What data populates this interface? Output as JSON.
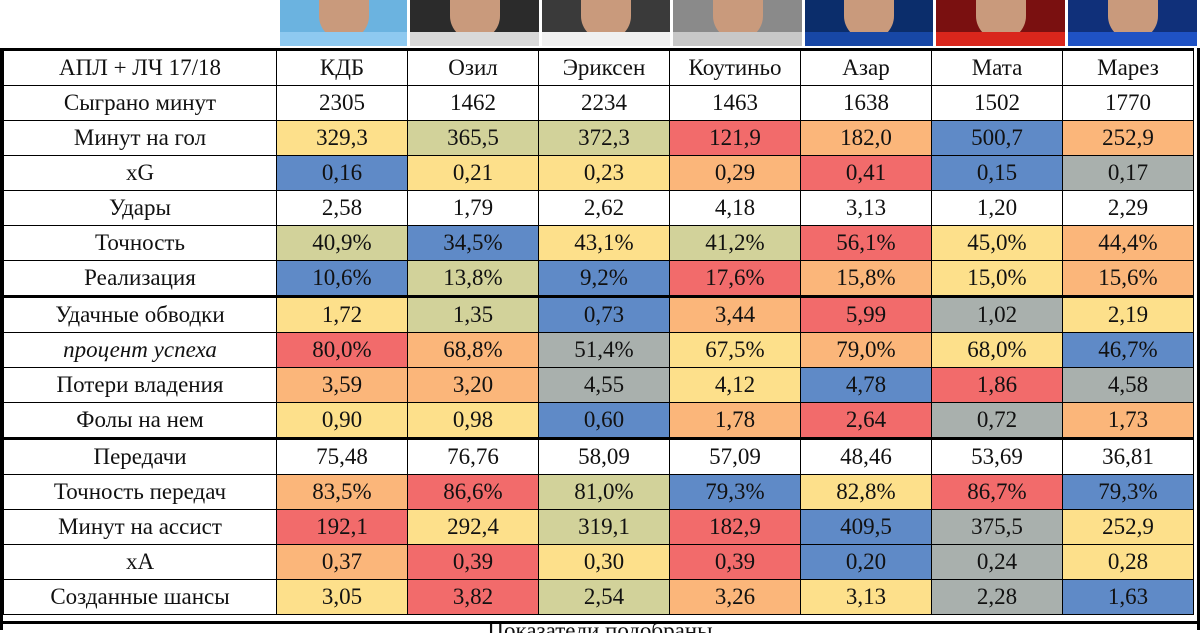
{
  "colors": {
    "yellow": "#fde08b",
    "olive": "#d2d29a",
    "red": "#f26b6b",
    "orange": "#fbb67a",
    "blue": "#5f8ac7",
    "grey": "#a9b0ad",
    "white": "#ffffff"
  },
  "header": {
    "label": "АПЛ + ЛЧ 17/18",
    "players": [
      "КДБ",
      "Озил",
      "Эриксен",
      "Коутиньо",
      "Азар",
      "Мата",
      "Марез"
    ]
  },
  "photos": [
    {
      "name": "КДБ",
      "bg": "#6bb3e0",
      "shirt": "#8ec9f0"
    },
    {
      "name": "Озил",
      "bg": "#2b2b2b",
      "shirt": "#d9d9d9"
    },
    {
      "name": "Эриксен",
      "bg": "#3a3a3a",
      "shirt": "#f0f0f0"
    },
    {
      "name": "Коутиньо",
      "bg": "#8a8a8a",
      "shirt": "#c8c8c8"
    },
    {
      "name": "Азар",
      "bg": "#0b2d6b",
      "shirt": "#1747a6"
    },
    {
      "name": "Мата",
      "bg": "#7a1010",
      "shirt": "#d9261c"
    },
    {
      "name": "Марез",
      "bg": "#10307a",
      "shirt": "#1f52c4"
    }
  ],
  "rows": [
    {
      "label": "Сыграно минут",
      "values": [
        "2305",
        "1462",
        "2234",
        "1463",
        "1638",
        "1502",
        "1770"
      ],
      "colors": [
        "white",
        "white",
        "white",
        "white",
        "white",
        "white",
        "white"
      ]
    },
    {
      "label": "Минут на гол",
      "values": [
        "329,3",
        "365,5",
        "372,3",
        "121,9",
        "182,0",
        "500,7",
        "252,9"
      ],
      "colors": [
        "yellow",
        "olive",
        "olive",
        "red",
        "orange",
        "blue",
        "orange"
      ]
    },
    {
      "label": "xG",
      "values": [
        "0,16",
        "0,21",
        "0,23",
        "0,29",
        "0,41",
        "0,15",
        "0,17"
      ],
      "colors": [
        "blue",
        "yellow",
        "yellow",
        "orange",
        "red",
        "blue",
        "grey"
      ]
    },
    {
      "label": "Удары",
      "values": [
        "2,58",
        "1,79",
        "2,62",
        "4,18",
        "3,13",
        "1,20",
        "2,29"
      ],
      "colors": [
        "white",
        "white",
        "white",
        "white",
        "white",
        "white",
        "white"
      ]
    },
    {
      "label": "Точность",
      "values": [
        "40,9%",
        "34,5%",
        "43,1%",
        "41,2%",
        "56,1%",
        "45,0%",
        "44,4%"
      ],
      "colors": [
        "olive",
        "blue",
        "yellow",
        "olive",
        "red",
        "yellow",
        "orange"
      ]
    },
    {
      "label": "Реализация",
      "values": [
        "10,6%",
        "13,8%",
        "9,2%",
        "17,6%",
        "15,8%",
        "15,0%",
        "15,6%"
      ],
      "colors": [
        "blue",
        "olive",
        "blue",
        "red",
        "orange",
        "yellow",
        "orange"
      ]
    },
    {
      "label": "Удачные обводки",
      "values": [
        "1,72",
        "1,35",
        "0,73",
        "3,44",
        "5,99",
        "1,02",
        "2,19"
      ],
      "colors": [
        "yellow",
        "olive",
        "blue",
        "orange",
        "red",
        "grey",
        "yellow"
      ]
    },
    {
      "label": "процент успеха",
      "italic": true,
      "values": [
        "80,0%",
        "68,8%",
        "51,4%",
        "67,5%",
        "79,0%",
        "68,0%",
        "46,7%"
      ],
      "colors": [
        "red",
        "orange",
        "grey",
        "yellow",
        "orange",
        "yellow",
        "blue"
      ]
    },
    {
      "label": "Потери владения",
      "values": [
        "3,59",
        "3,20",
        "4,55",
        "4,12",
        "4,78",
        "1,86",
        "4,58"
      ],
      "colors": [
        "orange",
        "orange",
        "grey",
        "yellow",
        "blue",
        "red",
        "grey"
      ]
    },
    {
      "label": "Фолы на нем",
      "values": [
        "0,90",
        "0,98",
        "0,60",
        "1,78",
        "2,64",
        "0,72",
        "1,73"
      ],
      "colors": [
        "yellow",
        "yellow",
        "blue",
        "orange",
        "red",
        "grey",
        "orange"
      ]
    },
    {
      "label": "Передачи",
      "values": [
        "75,48",
        "76,76",
        "58,09",
        "57,09",
        "48,46",
        "53,69",
        "36,81"
      ],
      "colors": [
        "white",
        "white",
        "white",
        "white",
        "white",
        "white",
        "white"
      ]
    },
    {
      "label": "Точность передач",
      "values": [
        "83,5%",
        "86,6%",
        "81,0%",
        "79,3%",
        "82,8%",
        "86,7%",
        "79,3%"
      ],
      "colors": [
        "orange",
        "red",
        "olive",
        "blue",
        "yellow",
        "red",
        "blue"
      ]
    },
    {
      "label": "Минут на ассист",
      "values": [
        "192,1",
        "292,4",
        "319,1",
        "182,9",
        "409,5",
        "375,5",
        "252,9"
      ],
      "colors": [
        "red",
        "yellow",
        "olive",
        "red",
        "blue",
        "grey",
        "yellow"
      ]
    },
    {
      "label": "xA",
      "values": [
        "0,37",
        "0,39",
        "0,30",
        "0,39",
        "0,20",
        "0,24",
        "0,28"
      ],
      "colors": [
        "orange",
        "red",
        "yellow",
        "red",
        "blue",
        "grey",
        "yellow"
      ]
    },
    {
      "label": "Созданные шансы",
      "values": [
        "3,05",
        "3,82",
        "2,54",
        "3,26",
        "3,13",
        "2,28",
        "1,63"
      ],
      "colors": [
        "yellow",
        "red",
        "olive",
        "orange",
        "yellow",
        "grey",
        "blue"
      ]
    }
  ],
  "footer_text": "Показатели подобраны"
}
